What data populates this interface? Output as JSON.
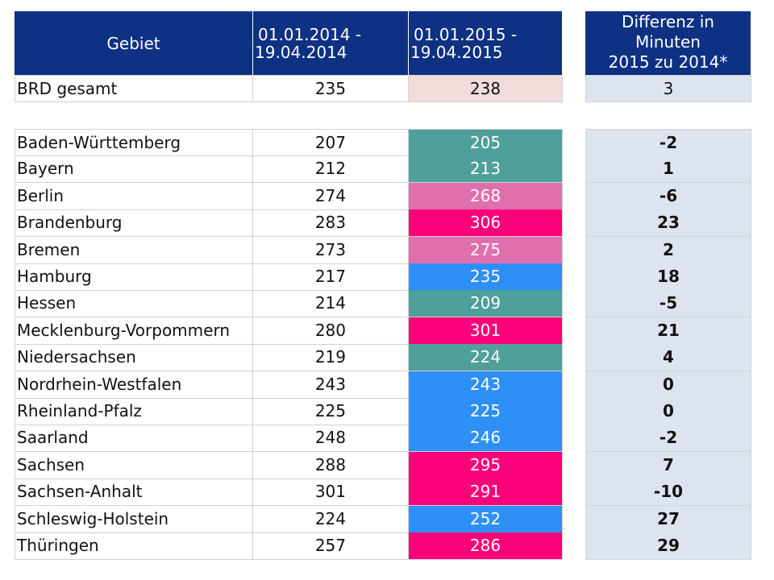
{
  "header": {
    "gebiet": "Gebiet",
    "period_2014": [
      "01.01.2014 -",
      "19.04.2014"
    ],
    "period_2015": [
      "01.01.2015 -",
      "19.04.2015"
    ],
    "diff": [
      "Differenz in",
      "Minuten",
      "2015 zu 2014*"
    ]
  },
  "total": {
    "name": "BRD gesamt",
    "v2014": "235",
    "v2015": "238",
    "diff": "3",
    "color": "#f2dcdb"
  },
  "colors": {
    "teal": "#4f9f9a",
    "pink": "#e26fad",
    "magenta": "#fe0079",
    "blue": "#2e8ff7",
    "diff_bg": "#dde4ef",
    "header_bg": "#0f3183"
  },
  "rows": [
    {
      "name": "Baden-Württemberg",
      "v2014": "207",
      "v2015": "205",
      "diff": "-2",
      "color": "#4f9f9a"
    },
    {
      "name": "Bayern",
      "v2014": "212",
      "v2015": "213",
      "diff": "1",
      "color": "#4f9f9a"
    },
    {
      "name": "Berlin",
      "v2014": "274",
      "v2015": "268",
      "diff": "-6",
      "color": "#e26fad"
    },
    {
      "name": "Brandenburg",
      "v2014": "283",
      "v2015": "306",
      "diff": "23",
      "color": "#fe0079"
    },
    {
      "name": "Bremen",
      "v2014": "273",
      "v2015": "275",
      "diff": "2",
      "color": "#e26fad"
    },
    {
      "name": "Hamburg",
      "v2014": "217",
      "v2015": "235",
      "diff": "18",
      "color": "#2e8ff7"
    },
    {
      "name": "Hessen",
      "v2014": "214",
      "v2015": "209",
      "diff": "-5",
      "color": "#4f9f9a"
    },
    {
      "name": "Mecklenburg-Vorpommern",
      "v2014": "280",
      "v2015": "301",
      "diff": "21",
      "color": "#fe0079"
    },
    {
      "name": "Niedersachsen",
      "v2014": "219",
      "v2015": "224",
      "diff": "4",
      "color": "#4f9f9a"
    },
    {
      "name": "Nordrhein-Westfalen",
      "v2014": "243",
      "v2015": "243",
      "diff": "0",
      "color": "#2e8ff7"
    },
    {
      "name": "Rheinland-Pfalz",
      "v2014": "225",
      "v2015": "225",
      "diff": "0",
      "color": "#2e8ff7"
    },
    {
      "name": "Saarland",
      "v2014": "248",
      "v2015": "246",
      "diff": "-2",
      "color": "#2e8ff7"
    },
    {
      "name": "Sachsen",
      "v2014": "288",
      "v2015": "295",
      "diff": "7",
      "color": "#fe0079"
    },
    {
      "name": "Sachsen-Anhalt",
      "v2014": "301",
      "v2015": "291",
      "diff": "-10",
      "color": "#fe0079"
    },
    {
      "name": "Schleswig-Holstein",
      "v2014": "224",
      "v2015": "252",
      "diff": "27",
      "color": "#2e8ff7"
    },
    {
      "name": "Thüringen",
      "v2014": "257",
      "v2015": "286",
      "diff": "29",
      "color": "#fe0079"
    }
  ]
}
